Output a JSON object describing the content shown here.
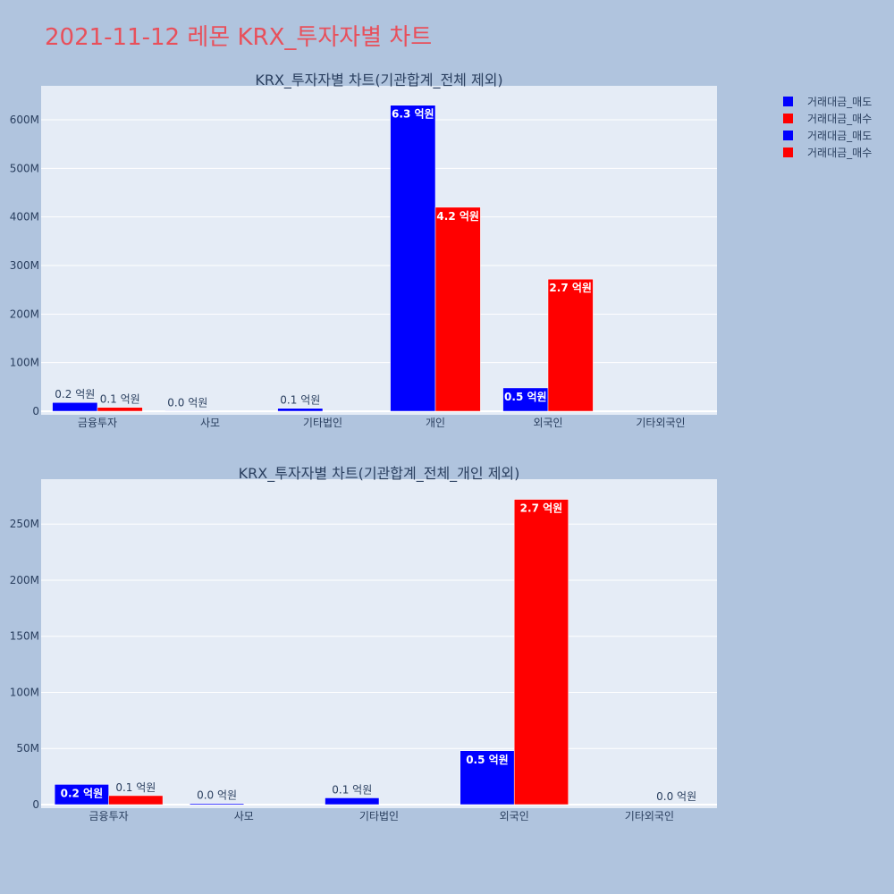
{
  "page": {
    "title": "2021-11-12 레몬 KRX_투자자별 차트",
    "title_color": "#e8505b",
    "background": "#b0c4de"
  },
  "legend": [
    {
      "label": "거래대금_매도",
      "color": "#0000ff"
    },
    {
      "label": "거래대금_매수",
      "color": "#ff0000"
    },
    {
      "label": "거래대금_매도",
      "color": "#0000ff"
    },
    {
      "label": "거래대금_매수",
      "color": "#ff0000"
    }
  ],
  "chart_data": [
    {
      "type": "bar",
      "title": "KRX_투자자별 차트(기관합계_전체 제외)",
      "categories": [
        "금융투자",
        "사모",
        "기타법인",
        "개인",
        "외국인",
        "기타외국인"
      ],
      "ylim": [
        0,
        670000000
      ],
      "yticks": [
        0,
        100000000,
        200000000,
        300000000,
        400000000,
        500000000,
        600000000
      ],
      "ytick_labels": [
        "0",
        "100M",
        "200M",
        "300M",
        "400M",
        "500M",
        "600M"
      ],
      "grid": true,
      "series": [
        {
          "name": "거래대금_매도",
          "color": "#0000ff",
          "values": [
            18000000,
            1000000,
            6000000,
            630000000,
            48000000,
            0
          ],
          "labels": [
            "0.2 억원",
            "0.0 억원",
            "0.1 억원",
            "6.3 억원",
            "0.5 억원",
            ""
          ]
        },
        {
          "name": "거래대금_매수",
          "color": "#ff0000",
          "values": [
            8000000,
            0,
            0,
            420000000,
            272000000,
            0
          ],
          "labels": [
            "0.1 억원",
            "",
            "",
            "4.2 억원",
            "2.7 억원",
            ""
          ]
        }
      ]
    },
    {
      "type": "bar",
      "title": "KRX_투자자별 차트(기관합계_전체_개인 제외)",
      "categories": [
        "금융투자",
        "사모",
        "기타법인",
        "외국인",
        "기타외국인"
      ],
      "ylim": [
        0,
        290000000
      ],
      "yticks": [
        0,
        50000000,
        100000000,
        150000000,
        200000000,
        250000000
      ],
      "ytick_labels": [
        "0",
        "50M",
        "100M",
        "150M",
        "200M",
        "250M"
      ],
      "grid": true,
      "series": [
        {
          "name": "거래대금_매도",
          "color": "#0000ff",
          "values": [
            18000000,
            1000000,
            6000000,
            48000000,
            0
          ],
          "labels": [
            "0.2 억원",
            "0.0 억원",
            "0.1 억원",
            "0.5 억원",
            ""
          ]
        },
        {
          "name": "거래대금_매수",
          "color": "#ff0000",
          "values": [
            8000000,
            0,
            0,
            272000000,
            0
          ],
          "labels": [
            "0.1 억원",
            "",
            "",
            "2.7 억원",
            "0.0 억원"
          ]
        }
      ]
    }
  ]
}
